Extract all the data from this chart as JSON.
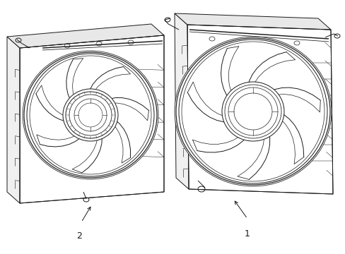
{
  "background_color": "#ffffff",
  "line_color": "#1a1a1a",
  "lw": 0.7,
  "figsize": [
    4.89,
    3.6
  ],
  "dpi": 100,
  "label1": "1",
  "label2": "2"
}
